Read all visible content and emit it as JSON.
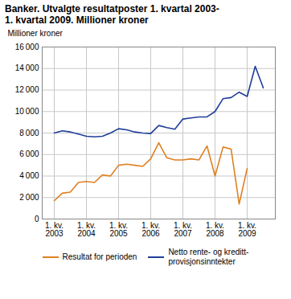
{
  "chart_data": {
    "type": "line",
    "title": "Banker. Utvalgte resultatposter 1. kvartal 2003-\n1. kvartal 2009. Millioner kroner",
    "ylabel": "Millioner kroner",
    "categories": [
      "1. kv.\n2003",
      null,
      null,
      null,
      "1. kv.\n2004",
      null,
      null,
      null,
      "1. kv.\n2005",
      null,
      null,
      null,
      "1. kv.\n2006",
      null,
      null,
      null,
      "1. kv.\n2007",
      null,
      null,
      null,
      "1. kv.\n2008",
      null,
      null,
      null,
      "1. kv.\n2009",
      null,
      null
    ],
    "series": [
      {
        "name": "Resultat for perioden",
        "color": "#e08020",
        "values": [
          1700,
          2400,
          2500,
          3400,
          3500,
          3400,
          4100,
          4000,
          5000,
          5100,
          5000,
          4900,
          5600,
          7100,
          5700,
          5500,
          5500,
          5600,
          5500,
          6800,
          4000,
          6700,
          6500,
          1400,
          4700,
          null,
          null
        ]
      },
      {
        "name": "Netto rente- og kreditt-\nprovisjonsinntekter",
        "color": "#1f3d99",
        "values": [
          8000,
          8200,
          8100,
          7900,
          7700,
          7650,
          7700,
          8000,
          8400,
          8300,
          8100,
          8000,
          7950,
          8700,
          8500,
          8350,
          9300,
          9400,
          9500,
          9500,
          10000,
          11200,
          11300,
          11800,
          11400,
          14200,
          12200
        ]
      }
    ],
    "ylim": [
      0,
      16000
    ],
    "yticks": [
      0,
      {
        "value": 2000,
        "label": "2 000"
      },
      {
        "value": 4000,
        "label": "4 000"
      },
      {
        "value": 6000,
        "label": "6 000"
      },
      {
        "value": 8000,
        "label": "8 000"
      },
      {
        "value": 10000,
        "label": "10 000"
      },
      {
        "value": 12000,
        "label": "12 000"
      },
      {
        "value": 14000,
        "label": "14 000"
      },
      {
        "value": 16000,
        "label": "16 000"
      }
    ],
    "grid": true,
    "legend": "bottom"
  }
}
